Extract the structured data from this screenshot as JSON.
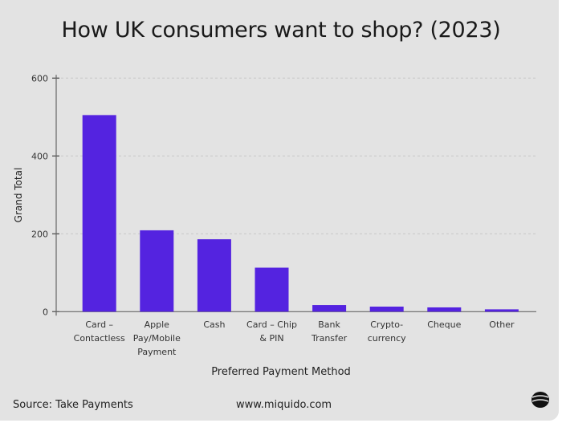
{
  "chart_data": {
    "type": "bar",
    "title": "How UK consumers want to shop? (2023)",
    "xlabel": "Preferred Payment Method",
    "ylabel": "Grand Total",
    "ylim": [
      0,
      600
    ],
    "yticks": [
      0,
      200,
      400,
      600
    ],
    "grid": true,
    "categories": [
      [
        "Card –",
        "Contactless"
      ],
      [
        "Apple",
        "Pay/Mobile",
        "Payment"
      ],
      [
        "Cash"
      ],
      [
        "Card – Chip",
        "& PIN"
      ],
      [
        "Bank",
        "Transfer"
      ],
      [
        "Crypto-",
        "currency"
      ],
      [
        "Cheque"
      ],
      [
        "Other"
      ]
    ],
    "values": [
      505,
      209,
      186,
      113,
      17,
      13,
      11,
      6
    ],
    "bar_color": "#5423e0"
  },
  "footer": {
    "source": "Source: Take Payments",
    "website": "www.miquido.com",
    "logo": "miquido-logo"
  }
}
